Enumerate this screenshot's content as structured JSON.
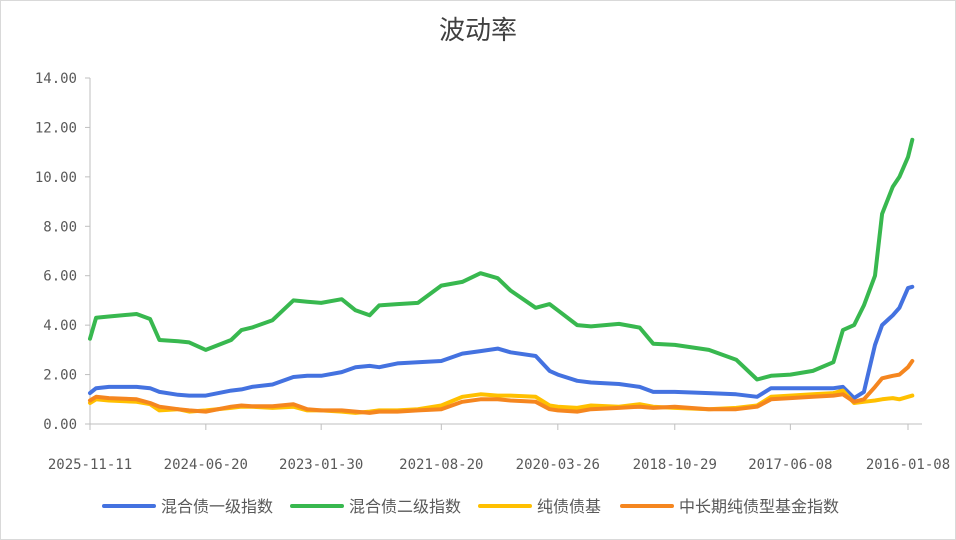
{
  "chart_data": {
    "type": "line",
    "title": "波动率",
    "xlabel": "",
    "ylabel": "",
    "ylim": [
      0,
      14
    ],
    "y_ticks": [
      "0.00",
      "2.00",
      "4.00",
      "6.00",
      "8.00",
      "10.00",
      "12.00",
      "14.00"
    ],
    "x_tick_labels": [
      "2025-11-11",
      "2024-06-20",
      "2023-01-30",
      "2021-08-20",
      "2020-03-26",
      "2018-10-29",
      "2017-06-08",
      "2016-01-08"
    ],
    "x_axis_direction": "descending dates, left to right",
    "legend_position": "bottom",
    "grid": false,
    "x": [
      "2025-11-11",
      "2025-10-15",
      "2025-08-20",
      "2025-04-20",
      "2025-02-20",
      "2025-01-10",
      "2024-10-20",
      "2024-09-01",
      "2024-06-20",
      "2024-03-01",
      "2024-01-15",
      "2023-12-01",
      "2023-09-01",
      "2023-06-01",
      "2023-04-01",
      "2023-01-30",
      "2022-11-01",
      "2022-09-01",
      "2022-07-01",
      "2022-05-20",
      "2022-03-01",
      "2021-12-01",
      "2021-08-20",
      "2021-05-20",
      "2021-03-01",
      "2020-12-15",
      "2020-10-20",
      "2020-07-01",
      "2020-05-01",
      "2020-03-26",
      "2020-01-01",
      "2019-11-01",
      "2019-07-01",
      "2019-04-01",
      "2019-02-01",
      "2018-10-29",
      "2018-06-01",
      "2018-02-01",
      "2017-11-01",
      "2017-09-01",
      "2017-06-08",
      "2017-03-01",
      "2016-12-01",
      "2016-10-20",
      "2016-09-01",
      "2016-07-20",
      "2016-06-01",
      "2016-05-01",
      "2016-03-15",
      "2016-02-15",
      "2016-01-08",
      "2015-12-20"
    ],
    "series": [
      {
        "name": "混合债一级指数",
        "color": "#4472e0",
        "values": [
          1.25,
          1.45,
          1.5,
          1.5,
          1.45,
          1.3,
          1.18,
          1.15,
          1.15,
          1.35,
          1.4,
          1.5,
          1.6,
          1.9,
          1.95,
          1.95,
          2.1,
          2.3,
          2.35,
          2.3,
          2.45,
          2.5,
          2.55,
          2.85,
          2.95,
          3.05,
          2.9,
          2.75,
          2.15,
          2.0,
          1.75,
          1.68,
          1.62,
          1.5,
          1.3,
          1.3,
          1.25,
          1.2,
          1.1,
          1.45,
          1.45,
          1.45,
          1.45,
          1.5,
          1.05,
          1.3,
          3.2,
          4.0,
          4.4,
          4.7,
          5.5,
          5.55
        ]
      },
      {
        "name": "混合债二级指数",
        "color": "#38b84f",
        "values": [
          3.45,
          4.3,
          4.35,
          4.45,
          4.25,
          3.4,
          3.35,
          3.3,
          3.0,
          3.4,
          3.8,
          3.9,
          4.2,
          5.0,
          4.95,
          4.9,
          5.05,
          4.6,
          4.4,
          4.8,
          4.85,
          4.9,
          5.6,
          5.75,
          6.1,
          5.9,
          5.4,
          4.7,
          4.85,
          4.6,
          4.0,
          3.95,
          4.05,
          3.9,
          3.25,
          3.2,
          3.0,
          2.6,
          1.8,
          1.95,
          2.0,
          2.15,
          2.5,
          3.8,
          4.0,
          4.8,
          6.0,
          8.5,
          9.6,
          10.0,
          10.8,
          11.5
        ]
      },
      {
        "name": "纯债债基",
        "color": "#ffc000",
        "values": [
          0.85,
          1.0,
          0.95,
          0.9,
          0.8,
          0.55,
          0.6,
          0.5,
          0.55,
          0.65,
          0.7,
          0.7,
          0.65,
          0.7,
          0.55,
          0.55,
          0.5,
          0.45,
          0.5,
          0.55,
          0.55,
          0.6,
          0.75,
          1.1,
          1.2,
          1.15,
          1.15,
          1.1,
          0.75,
          0.7,
          0.65,
          0.75,
          0.7,
          0.8,
          0.7,
          0.65,
          0.6,
          0.65,
          0.75,
          1.1,
          1.15,
          1.2,
          1.25,
          1.35,
          0.85,
          0.9,
          0.95,
          1.0,
          1.05,
          1.0,
          1.1,
          1.15
        ]
      },
      {
        "name": "中长期纯债型基金指数",
        "color": "#f5861f",
        "values": [
          0.95,
          1.1,
          1.05,
          1.0,
          0.85,
          0.7,
          0.6,
          0.55,
          0.5,
          0.7,
          0.75,
          0.72,
          0.72,
          0.8,
          0.6,
          0.55,
          0.55,
          0.5,
          0.45,
          0.5,
          0.5,
          0.55,
          0.6,
          0.9,
          1.0,
          1.0,
          0.95,
          0.9,
          0.6,
          0.55,
          0.5,
          0.6,
          0.65,
          0.7,
          0.65,
          0.7,
          0.6,
          0.6,
          0.7,
          1.0,
          1.05,
          1.1,
          1.15,
          1.2,
          0.9,
          1.0,
          1.5,
          1.85,
          1.95,
          2.0,
          2.3,
          2.55
        ]
      }
    ]
  }
}
